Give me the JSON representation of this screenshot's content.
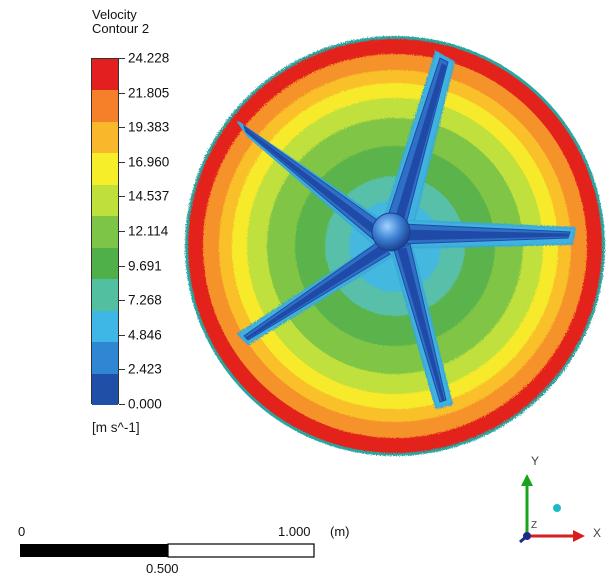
{
  "legend": {
    "title_line1": "Velocity",
    "title_line2": "Contour 2",
    "ticks": [
      "24.228",
      "21.805",
      "19.383",
      "16.960",
      "14.537",
      "12.114",
      "9.691",
      "7.268",
      "4.846",
      "2.423",
      "0.000"
    ],
    "unit": "[m s^-1]",
    "band_colors": [
      "#e31f1f",
      "#f6802a",
      "#f9b82c",
      "#f7ee2a",
      "#bfdf3a",
      "#7cc546",
      "#4fb04a",
      "#51bfa0",
      "#3eb7e6",
      "#2f86d3",
      "#1f4fa6"
    ]
  },
  "scale_bar": {
    "start_label": "0",
    "end_label": "1.000",
    "unit": "(m)",
    "mid_label": "0.500"
  },
  "axis_triad": {
    "y_label": "Y",
    "x_label": "X",
    "z_label": "Z"
  },
  "colors": {
    "red": "#e3241f",
    "orange": "#f6922a",
    "yellow": "#f7ea2a",
    "green": "#7ec441",
    "dark_green": "#55ae45",
    "cyan": "#42b7da",
    "blue": "#2f6fc4",
    "dark_blue": "#1f4aa8",
    "teal_edge": "#2aa6a0"
  }
}
